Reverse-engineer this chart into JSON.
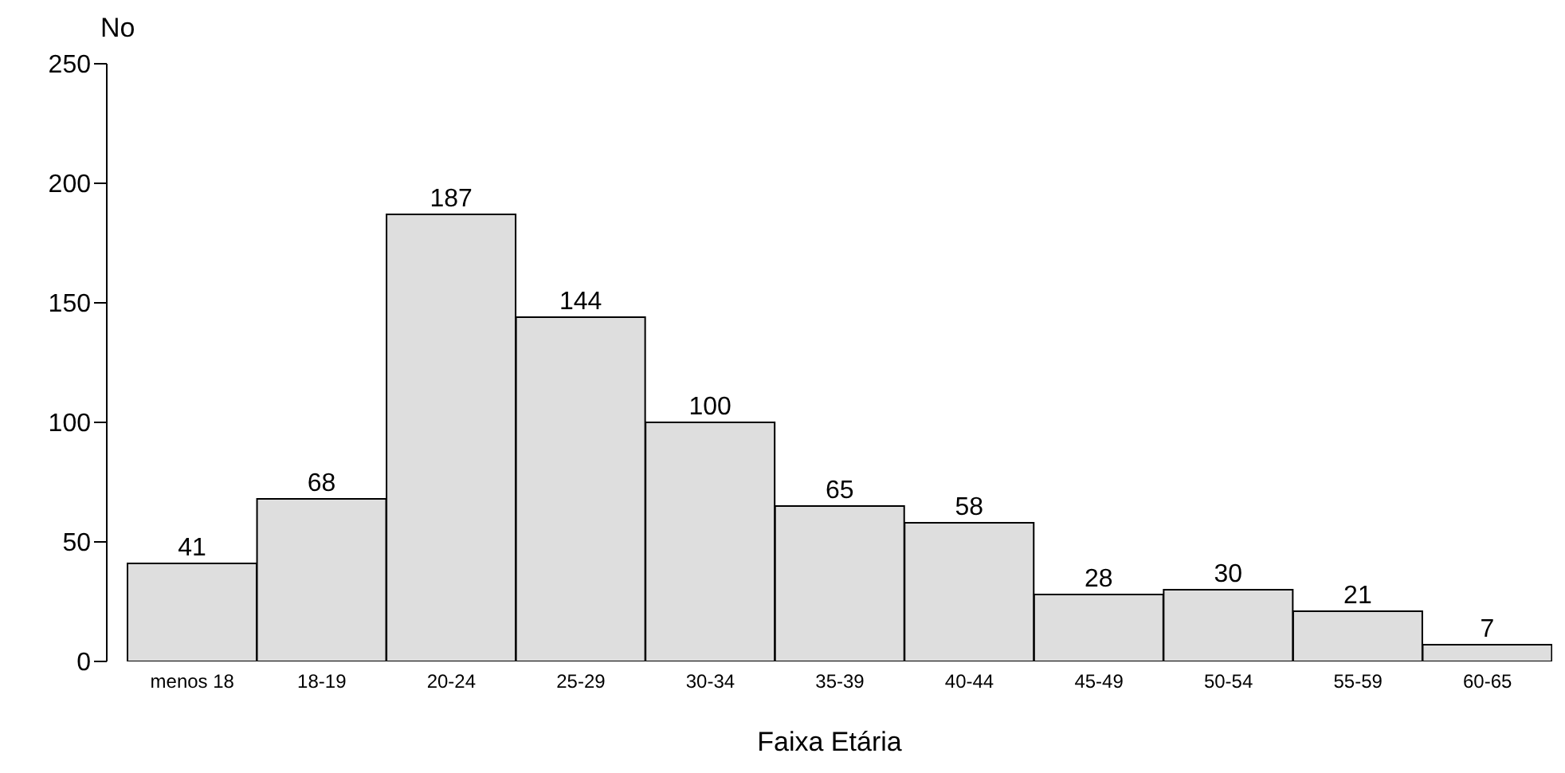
{
  "chart_data": {
    "type": "bar",
    "ylabel": "No",
    "xlabel": "Faixa Etária",
    "categories": [
      "menos 18",
      "18-19",
      "20-24",
      "25-29",
      "30-34",
      "35-39",
      "40-44",
      "45-49",
      "50-54",
      "55-59",
      "60-65"
    ],
    "values": [
      41,
      68,
      187,
      144,
      100,
      65,
      58,
      28,
      30,
      21,
      7
    ],
    "color": "#dedede",
    "ylim": [
      0,
      250
    ],
    "yticks": [
      0,
      50,
      100,
      150,
      200,
      250
    ],
    "grid": false,
    "data_labels": true
  }
}
